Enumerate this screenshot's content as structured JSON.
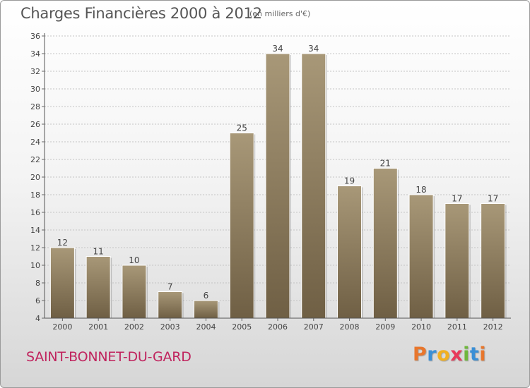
{
  "header": {
    "title": "Charges Financières 2000 à 2012",
    "subtitle": "(en milliers d'€)"
  },
  "footer": {
    "commune": "SAINT-BONNET-DU-GARD",
    "logo": {
      "letters": [
        "P",
        "r",
        "o",
        "x",
        "i",
        "t",
        "i"
      ],
      "colors": [
        "#e8762c",
        "#3a8fd6",
        "#f2b021",
        "#e83a5a",
        "#6fb73c",
        "#3a8fd6",
        "#e8762c"
      ]
    }
  },
  "chart_data": {
    "type": "bar",
    "categories": [
      "2000",
      "2001",
      "2002",
      "2003",
      "2004",
      "2005",
      "2006",
      "2007",
      "2008",
      "2009",
      "2010",
      "2011",
      "2012"
    ],
    "values": [
      12,
      11,
      10,
      7,
      6,
      25,
      34,
      34,
      19,
      21,
      18,
      17,
      17
    ],
    "data_labels": [
      "12",
      "11",
      "10",
      "7",
      "6",
      "25",
      "34",
      "34",
      "19",
      "21",
      "18",
      "17",
      "17"
    ],
    "title": "Charges Financières 2000 à 2012",
    "ylim": [
      4,
      36
    ],
    "yticks": [
      4,
      6,
      8,
      10,
      12,
      14,
      16,
      18,
      20,
      22,
      24,
      26,
      28,
      30,
      32,
      34,
      36
    ],
    "grid": "horizontal dashed",
    "bar_color_top": "#a89878",
    "bar_color_bottom": "#6f5f44"
  }
}
